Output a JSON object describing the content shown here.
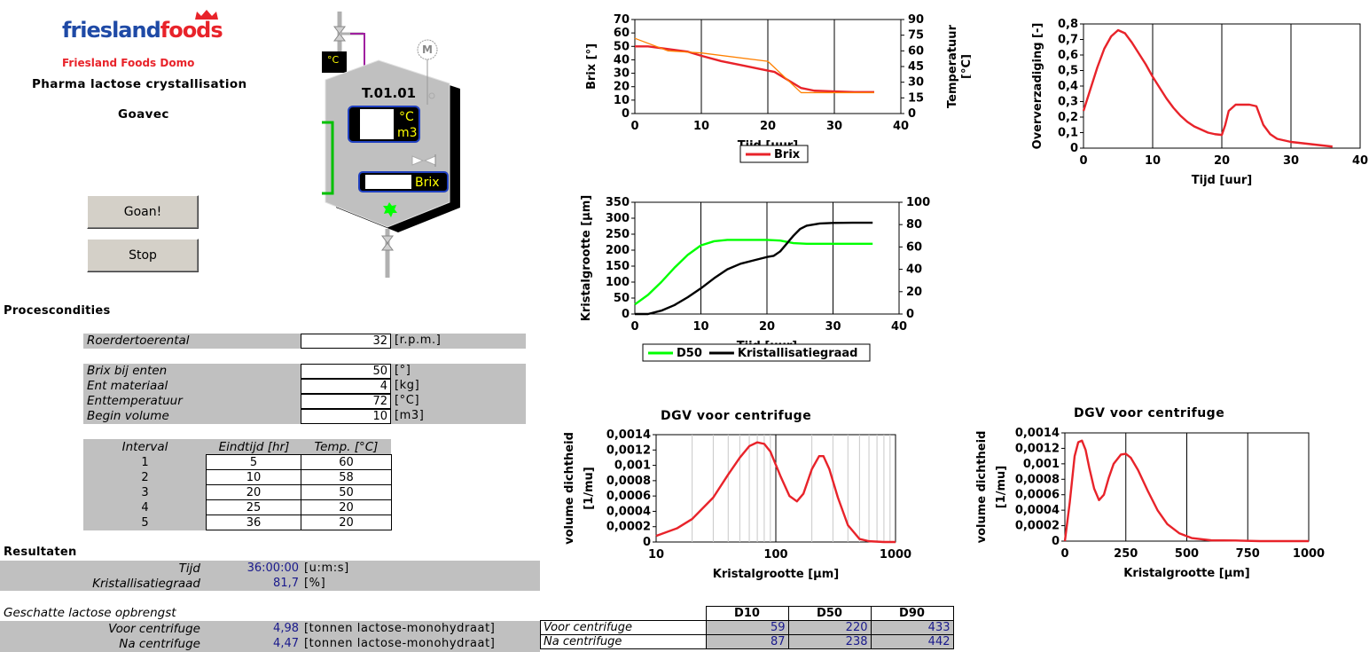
{
  "brand": {
    "logo_left": "friesland",
    "logo_right": "foods",
    "subtitle": "Friesland Foods Domo"
  },
  "header": {
    "title": "Pharma lactose crystallisation",
    "subtitle": "Goavec"
  },
  "buttons": {
    "start": "Goan!",
    "stop": "Stop"
  },
  "tank": {
    "id": "T.01.01",
    "temp_unit": "°C",
    "volume_unit": "m3",
    "brix_label": "Brix",
    "temp_sensor_label": "°C",
    "motor_label": "M"
  },
  "conditions": {
    "title": "Procescondities",
    "roerder": {
      "label": "Roerdertoerental",
      "value": "32",
      "unit": "[r.p.m.]"
    },
    "rows": [
      {
        "label": "Brix bij enten",
        "value": "50",
        "unit": "[°]"
      },
      {
        "label": "Ent materiaal",
        "value": "4",
        "unit": "[kg]"
      },
      {
        "label": "Enttemperatuur",
        "value": "72",
        "unit": "[°C]"
      },
      {
        "label": "Begin volume",
        "value": "10",
        "unit": "[m3]"
      }
    ],
    "interval_headers": [
      "Interval",
      "Eindtijd [hr]",
      "Temp. [°C]"
    ],
    "intervals": [
      {
        "n": "1",
        "end": "5",
        "temp": "60"
      },
      {
        "n": "2",
        "end": "10",
        "temp": "58"
      },
      {
        "n": "3",
        "end": "20",
        "temp": "50"
      },
      {
        "n": "4",
        "end": "25",
        "temp": "20"
      },
      {
        "n": "5",
        "end": "36",
        "temp": "20"
      }
    ]
  },
  "results": {
    "title": "Resultaten",
    "time": {
      "label": "Tijd",
      "value": "36:00:00",
      "unit": "[u:m:s]"
    },
    "degree": {
      "label": "Kristallisatiegraad",
      "value": "81,7",
      "unit": "[%]"
    },
    "yield_title": "Geschatte lactose opbrengst",
    "yield": [
      {
        "label": "Voor centrifuge",
        "value": "4,98",
        "unit": "[tonnen lactose-monohydraat]"
      },
      {
        "label": "Na centrifuge",
        "value": "4,47",
        "unit": "[tonnen lactose-monohydraat]"
      }
    ],
    "d_headers": [
      "D10",
      "D50",
      "D90"
    ],
    "d_rows": [
      {
        "label": "Voor centrifuge",
        "d10": "59",
        "d50": "220",
        "d90": "433"
      },
      {
        "label": "Na centrifuge",
        "d10": "87",
        "d50": "238",
        "d90": "442"
      }
    ]
  },
  "colors": {
    "red": "#e8232a",
    "blue": "#1f4aa6",
    "green": "#00ff00",
    "gray": "#c0c0c0"
  },
  "chart_data": [
    {
      "type": "line",
      "id": "brix_temp",
      "xlabel": "Tijd [uur]",
      "ylabel": "Brix [°]",
      "y2label": "Temperatuur [°C]",
      "xlim": [
        0,
        40
      ],
      "ylim": [
        0,
        70
      ],
      "y2lim": [
        0,
        90
      ],
      "xticks": [
        "0",
        "10",
        "20",
        "30",
        "40"
      ],
      "yticks": [
        "0",
        "10",
        "20",
        "30",
        "40",
        "50",
        "60",
        "70"
      ],
      "y2ticks": [
        "0",
        "15",
        "30",
        "45",
        "60",
        "75",
        "90"
      ],
      "legend": "bottom",
      "series": [
        {
          "name": "Brix",
          "color": "#e8232a",
          "axis": "y",
          "x": [
            0,
            2,
            5,
            8,
            10,
            13,
            16,
            19,
            21,
            23,
            25,
            27,
            30,
            33,
            36
          ],
          "y": [
            50,
            50,
            48,
            46,
            43,
            39,
            36,
            33,
            31,
            25,
            19,
            17,
            16.5,
            16,
            16
          ]
        },
        {
          "color": "#ff8000",
          "axis": "y2",
          "x": [
            0,
            5,
            5,
            10,
            10,
            20,
            20,
            25,
            25,
            36
          ],
          "y": [
            72,
            60,
            60,
            58,
            58,
            50,
            50,
            20,
            20,
            20
          ]
        }
      ]
    },
    {
      "type": "line",
      "id": "oververzadiging",
      "xlabel": "Tijd [uur]",
      "ylabel": "Oververzadiging [-]",
      "xlim": [
        0,
        40
      ],
      "ylim": [
        0,
        0.8
      ],
      "xticks": [
        "0",
        "10",
        "20",
        "30",
        "40"
      ],
      "yticks": [
        "0",
        "0,1",
        "0,2",
        "0,3",
        "0,4",
        "0,5",
        "0,6",
        "0,7",
        "0,8"
      ],
      "series": [
        {
          "color": "#e8232a",
          "x": [
            0,
            1,
            2,
            3,
            4,
            5,
            6,
            7,
            8,
            9,
            10,
            11,
            12,
            13,
            14,
            15,
            16,
            17,
            18,
            19,
            20,
            20.5,
            21,
            22,
            23,
            24,
            25,
            26,
            27,
            28,
            30,
            32,
            34,
            36
          ],
          "y": [
            0.24,
            0.38,
            0.52,
            0.64,
            0.72,
            0.76,
            0.74,
            0.68,
            0.61,
            0.54,
            0.46,
            0.39,
            0.32,
            0.26,
            0.21,
            0.17,
            0.14,
            0.12,
            0.1,
            0.09,
            0.085,
            0.15,
            0.24,
            0.28,
            0.28,
            0.28,
            0.27,
            0.15,
            0.09,
            0.06,
            0.04,
            0.03,
            0.02,
            0.01
          ]
        }
      ]
    },
    {
      "type": "line",
      "id": "kristal",
      "xlabel": "Tijd [uur]",
      "ylabel": "Kristalgrootte [µm]",
      "xlim": [
        0,
        40
      ],
      "ylim": [
        0,
        350
      ],
      "y2lim": [
        0,
        100
      ],
      "xticks": [
        "0",
        "10",
        "20",
        "30",
        "40"
      ],
      "yticks": [
        "0",
        "50",
        "100",
        "150",
        "200",
        "250",
        "300",
        "350"
      ],
      "y2ticks": [
        "0",
        "20",
        "40",
        "60",
        "80",
        "100"
      ],
      "legend": "bottom",
      "series": [
        {
          "name": "D50",
          "color": "#00ff00",
          "axis": "y",
          "x": [
            0,
            2,
            4,
            6,
            8,
            10,
            12,
            14,
            16,
            18,
            20,
            22,
            24,
            26,
            30,
            36
          ],
          "y": [
            30,
            60,
            100,
            145,
            185,
            215,
            228,
            232,
            232,
            232,
            232,
            230,
            222,
            220,
            220,
            220
          ]
        },
        {
          "name": "Kristallisatiegraad",
          "color": "#000000",
          "axis": "y2",
          "x": [
            0,
            2,
            4,
            6,
            8,
            10,
            12,
            14,
            16,
            18,
            20,
            21,
            22,
            24,
            25,
            26,
            28,
            30,
            33,
            36
          ],
          "y": [
            0,
            0,
            3,
            8,
            15,
            23,
            32,
            40,
            45,
            48,
            51,
            52,
            56,
            70,
            76,
            79,
            81,
            81.5,
            81.7,
            81.7
          ]
        }
      ]
    },
    {
      "type": "line",
      "id": "dgv_log",
      "title": "DGV voor centrifuge",
      "xlabel": "Kristalgrootte [µm]",
      "ylabel": "volume dichtheid [1/mu]",
      "xscale": "log",
      "xlim": [
        10,
        1000
      ],
      "ylim": [
        0,
        0.0014
      ],
      "xticks": [
        "10",
        "100",
        "1000"
      ],
      "yticks": [
        "0",
        "0,0002",
        "0,0004",
        "0,0006",
        "0,0008",
        "0,001",
        "0,0012",
        "0,0014"
      ],
      "series": [
        {
          "color": "#e8232a",
          "x": [
            10,
            15,
            20,
            30,
            40,
            50,
            60,
            70,
            80,
            90,
            110,
            130,
            150,
            170,
            200,
            230,
            250,
            280,
            330,
            400,
            500,
            600,
            800,
            1000
          ],
          "y": [
            8e-05,
            0.00018,
            0.0003,
            0.00058,
            0.00088,
            0.0011,
            0.00125,
            0.0013,
            0.00128,
            0.00118,
            0.00085,
            0.0006,
            0.00053,
            0.00063,
            0.00095,
            0.00112,
            0.00112,
            0.00095,
            0.00058,
            0.00022,
            4e-05,
            1e-05,
            0,
            0
          ]
        }
      ]
    },
    {
      "type": "line",
      "id": "dgv_lin",
      "title": "DGV voor centrifuge",
      "xlabel": "Kristalgrootte [µm]",
      "ylabel": "volume dichtheid [1/mu]",
      "xlim": [
        0,
        1000
      ],
      "ylim": [
        0,
        0.0014
      ],
      "xticks": [
        "0",
        "250",
        "500",
        "750",
        "1000"
      ],
      "yticks": [
        "0",
        "0,0002",
        "0,0004",
        "0,0006",
        "0,0008",
        "0,001",
        "0,0012",
        "0,0014"
      ],
      "series": [
        {
          "color": "#e8232a",
          "x": [
            0,
            20,
            40,
            55,
            70,
            85,
            100,
            120,
            140,
            160,
            180,
            200,
            230,
            250,
            270,
            300,
            340,
            380,
            420,
            470,
            520,
            600,
            700,
            800,
            900,
            1000
          ],
          "y": [
            0,
            0.0005,
            0.0011,
            0.00128,
            0.0013,
            0.00118,
            0.00095,
            0.00068,
            0.00053,
            0.0006,
            0.00082,
            0.001,
            0.00112,
            0.00113,
            0.00108,
            0.00092,
            0.00065,
            0.0004,
            0.00022,
            0.0001,
            4e-05,
            1e-05,
            8e-06,
            0,
            0,
            0
          ]
        }
      ]
    }
  ]
}
